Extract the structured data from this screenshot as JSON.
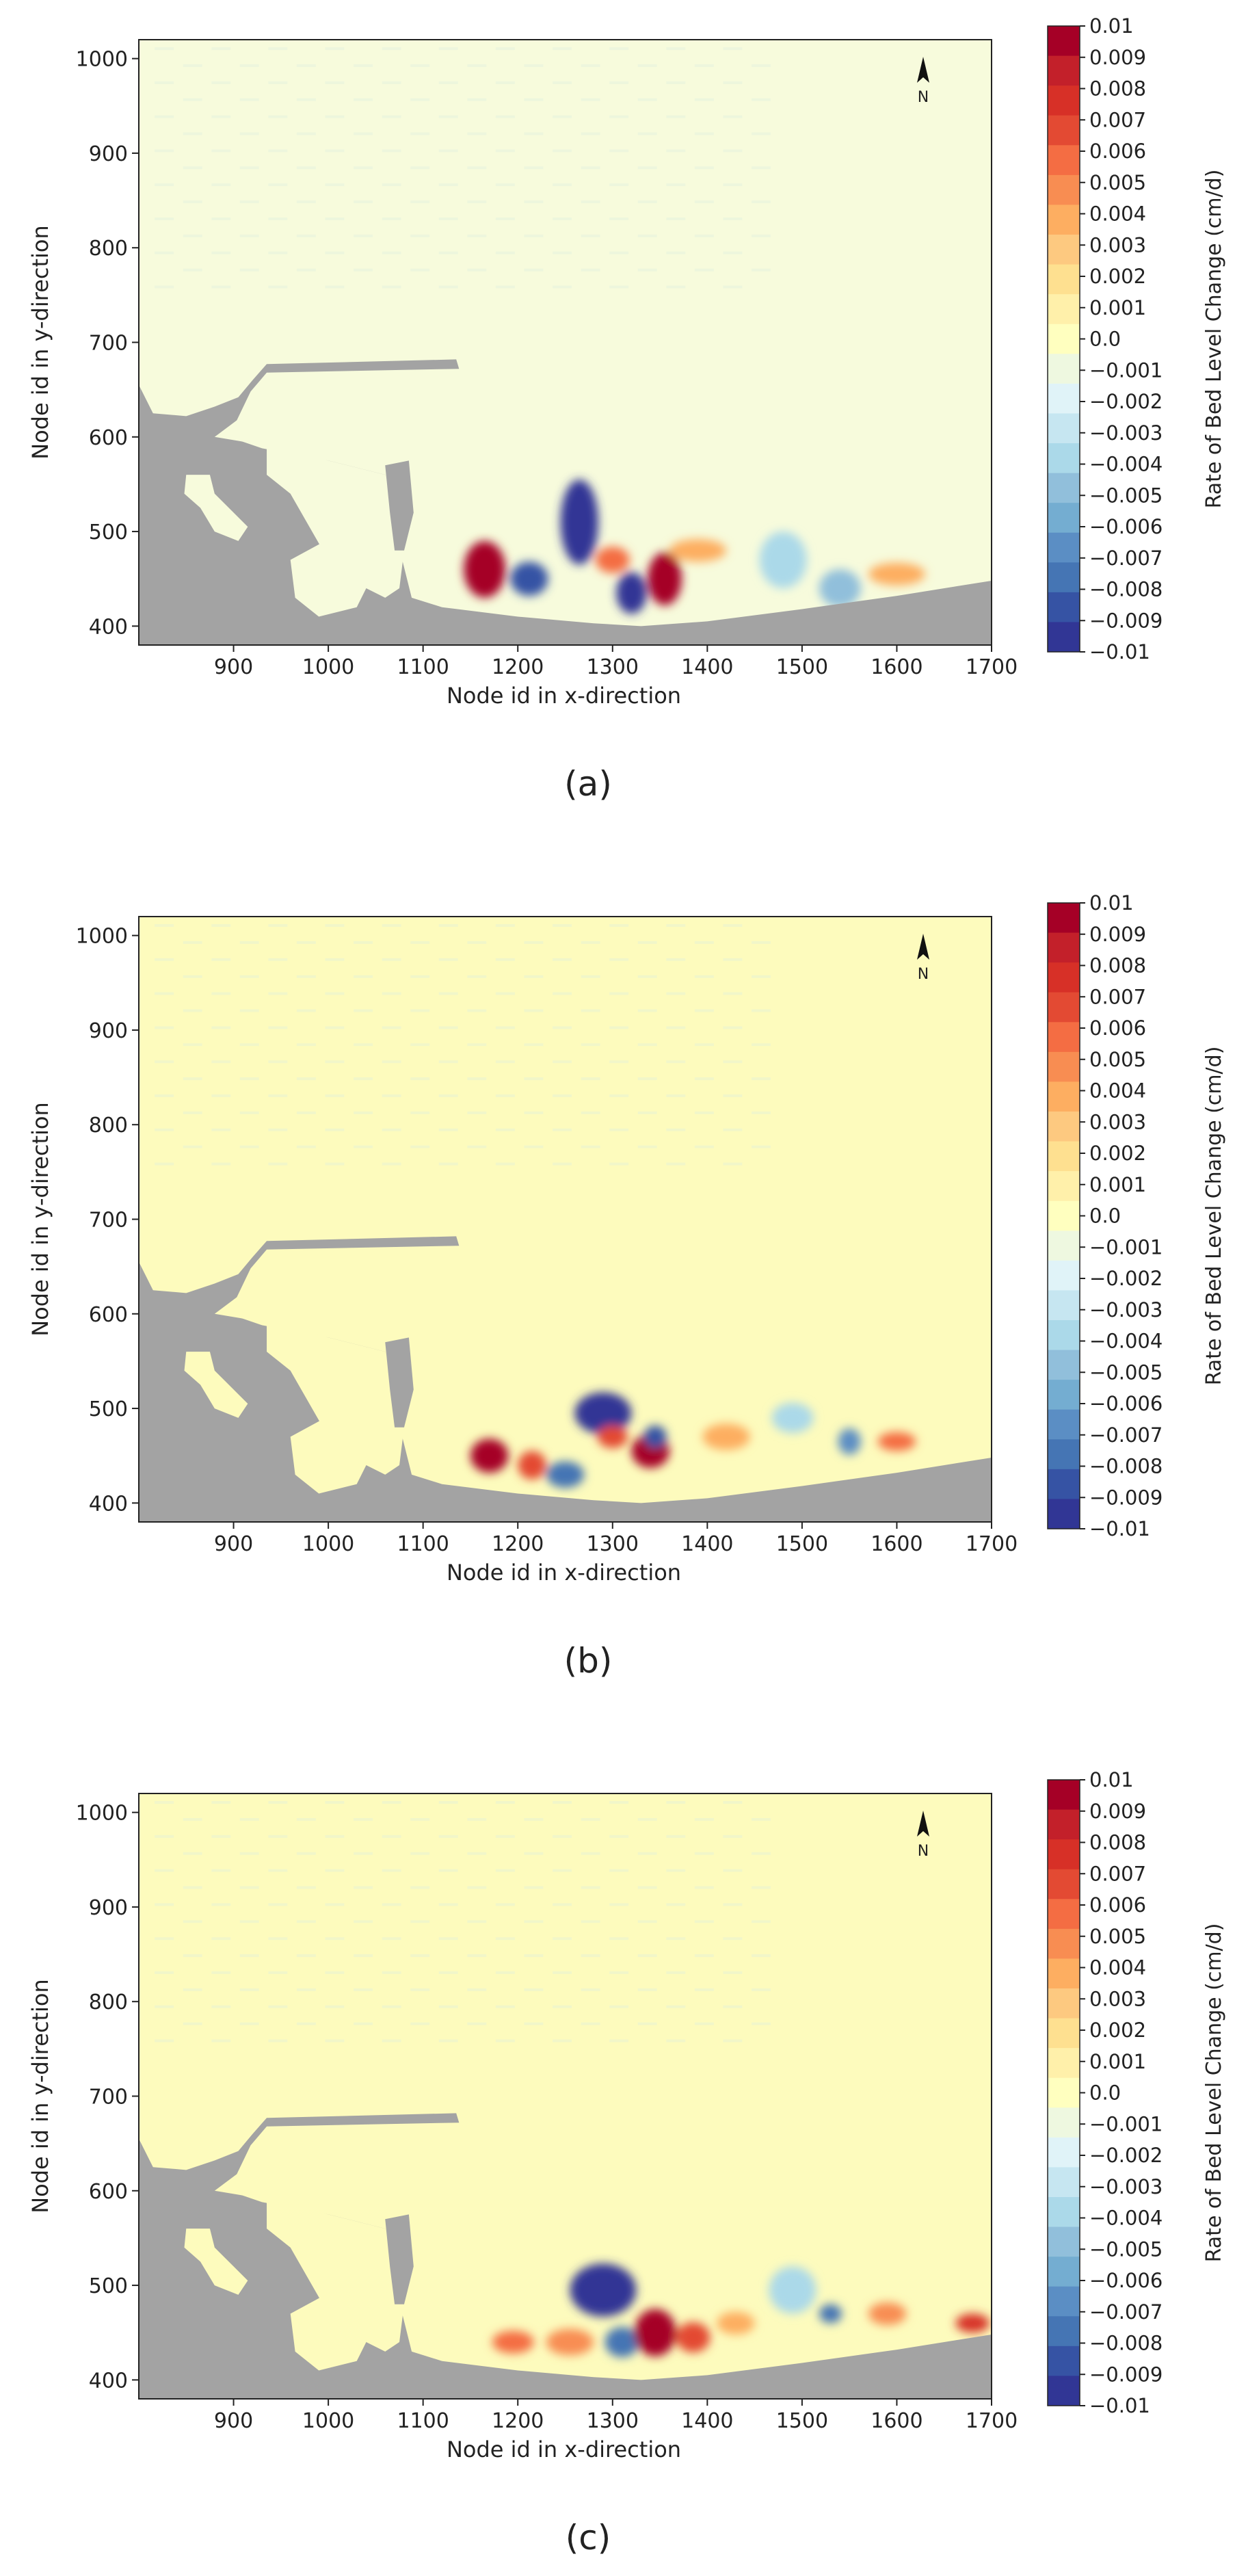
{
  "colors": {
    "land": "#a3a3a3",
    "water_base": "#fdfbbd",
    "north_arrow": "#111111"
  },
  "colorbar": {
    "label": "Rate of Bed Level Change (cm/d)",
    "ticks": [
      "0.01",
      "0.009",
      "0.008",
      "0.007",
      "0.006",
      "0.005",
      "0.004",
      "0.003",
      "0.002",
      "0.001",
      "0.0",
      "−0.001",
      "−0.002",
      "−0.003",
      "−0.004",
      "−0.005",
      "−0.006",
      "−0.007",
      "−0.008",
      "−0.009",
      "−0.01"
    ],
    "colors": [
      "#a50026",
      "#c3202a",
      "#d73027",
      "#e34a33",
      "#f46d43",
      "#f88d52",
      "#fdae61",
      "#fdc980",
      "#fee090",
      "#fff0aa",
      "#ffffbf",
      "#eef8e0",
      "#e0f3f8",
      "#c6e6f1",
      "#abd9e9",
      "#91bfdb",
      "#74add1",
      "#5b8ec4",
      "#4575b4",
      "#3653a4",
      "#313695"
    ]
  },
  "north_label": "N",
  "chart_data": [
    {
      "type": "heatmap",
      "caption": "(a)",
      "xlabel": "Node id in x-direction",
      "ylabel": "Node id in y-direction",
      "xlim": [
        800,
        1700
      ],
      "ylim": [
        380,
        1020
      ],
      "xticks": [
        900,
        1000,
        1100,
        1200,
        1300,
        1400,
        1500,
        1600,
        1700
      ],
      "yticks": [
        400,
        500,
        600,
        700,
        800,
        900,
        1000
      ],
      "background": "#f7fbdc",
      "hotspots": [
        {
          "x": 1165,
          "y": 460,
          "rx": 22,
          "ry": 30,
          "value": 0.01
        },
        {
          "x": 1212,
          "y": 450,
          "rx": 20,
          "ry": 18,
          "value": -0.009
        },
        {
          "x": 1265,
          "y": 510,
          "rx": 20,
          "ry": 45,
          "value": -0.01
        },
        {
          "x": 1300,
          "y": 470,
          "rx": 18,
          "ry": 14,
          "value": 0.006
        },
        {
          "x": 1320,
          "y": 435,
          "rx": 16,
          "ry": 22,
          "value": -0.01
        },
        {
          "x": 1355,
          "y": 450,
          "rx": 18,
          "ry": 28,
          "value": 0.01
        },
        {
          "x": 1390,
          "y": 480,
          "rx": 30,
          "ry": 12,
          "value": 0.004
        },
        {
          "x": 1480,
          "y": 470,
          "rx": 25,
          "ry": 30,
          "value": -0.004
        },
        {
          "x": 1540,
          "y": 440,
          "rx": 22,
          "ry": 20,
          "value": -0.005
        },
        {
          "x": 1600,
          "y": 455,
          "rx": 30,
          "ry": 12,
          "value": 0.004
        }
      ]
    },
    {
      "type": "heatmap",
      "caption": "(b)",
      "xlabel": "Node id in x-direction",
      "ylabel": "Node id in y-direction",
      "xlim": [
        800,
        1700
      ],
      "ylim": [
        380,
        1020
      ],
      "xticks": [
        900,
        1000,
        1100,
        1200,
        1300,
        1400,
        1500,
        1600,
        1700
      ],
      "yticks": [
        400,
        500,
        600,
        700,
        800,
        900,
        1000
      ],
      "background": "#fdfbbd",
      "hotspots": [
        {
          "x": 1170,
          "y": 450,
          "rx": 20,
          "ry": 18,
          "value": 0.01
        },
        {
          "x": 1215,
          "y": 440,
          "rx": 15,
          "ry": 15,
          "value": 0.007
        },
        {
          "x": 1250,
          "y": 430,
          "rx": 20,
          "ry": 14,
          "value": -0.008
        },
        {
          "x": 1290,
          "y": 495,
          "rx": 30,
          "ry": 22,
          "value": -0.01
        },
        {
          "x": 1300,
          "y": 470,
          "rx": 16,
          "ry": 12,
          "value": 0.007
        },
        {
          "x": 1340,
          "y": 455,
          "rx": 20,
          "ry": 18,
          "value": 0.01
        },
        {
          "x": 1345,
          "y": 470,
          "rx": 12,
          "ry": 12,
          "value": -0.009
        },
        {
          "x": 1420,
          "y": 470,
          "rx": 25,
          "ry": 14,
          "value": 0.004
        },
        {
          "x": 1490,
          "y": 490,
          "rx": 22,
          "ry": 16,
          "value": -0.004
        },
        {
          "x": 1550,
          "y": 465,
          "rx": 12,
          "ry": 14,
          "value": -0.007
        },
        {
          "x": 1600,
          "y": 465,
          "rx": 20,
          "ry": 10,
          "value": 0.006
        }
      ]
    },
    {
      "type": "heatmap",
      "caption": "(c)",
      "xlabel": "Node id in x-direction",
      "ylabel": "Node id in y-direction",
      "xlim": [
        800,
        1700
      ],
      "ylim": [
        380,
        1020
      ],
      "xticks": [
        900,
        1000,
        1100,
        1200,
        1300,
        1400,
        1500,
        1600,
        1700
      ],
      "yticks": [
        400,
        500,
        600,
        700,
        800,
        900,
        1000
      ],
      "background": "#fdfbbd",
      "hotspots": [
        {
          "x": 1195,
          "y": 440,
          "rx": 22,
          "ry": 12,
          "value": 0.006
        },
        {
          "x": 1255,
          "y": 440,
          "rx": 25,
          "ry": 14,
          "value": 0.005
        },
        {
          "x": 1290,
          "y": 495,
          "rx": 35,
          "ry": 28,
          "value": -0.01
        },
        {
          "x": 1310,
          "y": 440,
          "rx": 18,
          "ry": 16,
          "value": -0.008
        },
        {
          "x": 1345,
          "y": 450,
          "rx": 22,
          "ry": 25,
          "value": 0.01
        },
        {
          "x": 1385,
          "y": 445,
          "rx": 18,
          "ry": 16,
          "value": 0.007
        },
        {
          "x": 1430,
          "y": 460,
          "rx": 20,
          "ry": 12,
          "value": 0.004
        },
        {
          "x": 1490,
          "y": 495,
          "rx": 25,
          "ry": 25,
          "value": -0.004
        },
        {
          "x": 1530,
          "y": 470,
          "rx": 12,
          "ry": 10,
          "value": -0.008
        },
        {
          "x": 1590,
          "y": 470,
          "rx": 20,
          "ry": 12,
          "value": 0.005
        },
        {
          "x": 1680,
          "y": 460,
          "rx": 18,
          "ry": 10,
          "value": 0.008
        }
      ]
    }
  ]
}
